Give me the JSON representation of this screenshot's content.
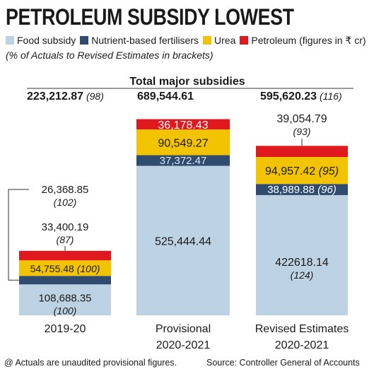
{
  "title": "PETROLEUM SUBSIDY LOWEST",
  "legend": [
    {
      "label": "Food subsidy",
      "color": "#bdd3e3"
    },
    {
      "label": "Nutrient-based fertilisers",
      "color": "#2f4c6e"
    },
    {
      "label": "Urea",
      "color": "#f2c300"
    },
    {
      "label": "Petroleum (figures in ₹ cr)",
      "color": "#e0191f"
    }
  ],
  "subtitle_note": "(% of Actuals to Revised  Estimates in brackets)",
  "total_heading": "Total major subsidies",
  "footer": {
    "note": "@ Actuals are unaudited provisional figures.",
    "source": "Source: Controller General of Accounts"
  },
  "chart_data": {
    "type": "bar",
    "stacked": true,
    "categories": [
      {
        "line1": "2019-20",
        "line2": ""
      },
      {
        "line1": "Provisional",
        "line2": "2020-2021"
      },
      {
        "line1": "Revised Estimates",
        "line2": "2020-2021"
      }
    ],
    "totals": [
      {
        "value": "223,212.87",
        "pct": "(98)"
      },
      {
        "value": "689,544.61",
        "pct": ""
      },
      {
        "value": "595,620.23",
        "pct": "(116)"
      }
    ],
    "series": [
      {
        "name": "Food subsidy",
        "color": "#bdd3e3",
        "values": [
          108688.35,
          525444.44,
          422618.14
        ],
        "labels": [
          "108,688.35",
          "525,444.44",
          "422618.14"
        ],
        "pcts": [
          "(100)",
          "",
          "(124)"
        ]
      },
      {
        "name": "Nutrient-based fertilisers",
        "color": "#2f4c6e",
        "values": [
          26368.85,
          37372.47,
          38989.88
        ],
        "labels": [
          "26,368.85",
          "37,372.47",
          "38,989.88"
        ],
        "pcts": [
          "(102)",
          "",
          "(96)"
        ]
      },
      {
        "name": "Urea",
        "color": "#f2c300",
        "values": [
          54755.48,
          90549.27,
          94957.42
        ],
        "labels": [
          "54,755.48",
          "90,549.27",
          "94,957.42"
        ],
        "pcts": [
          "(100)",
          "",
          "(95)"
        ]
      },
      {
        "name": "Petroleum",
        "color": "#e0191f",
        "values": [
          33400.19,
          36178.43,
          39054.79
        ],
        "labels": [
          "33,400.19",
          "36,178.43",
          "39,054.79"
        ],
        "pcts": [
          "(87)",
          "",
          "(93)"
        ]
      }
    ]
  }
}
